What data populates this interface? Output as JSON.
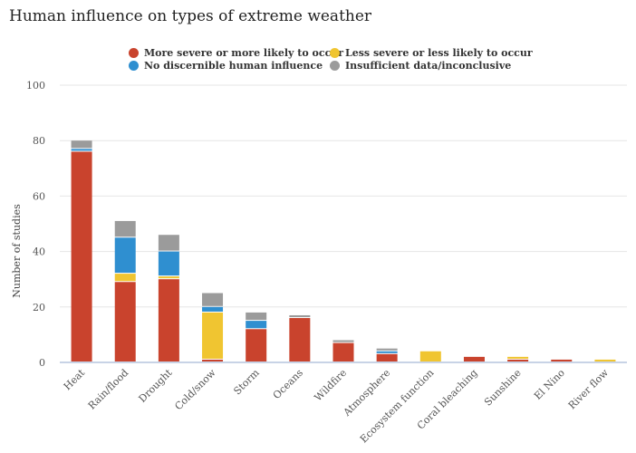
{
  "chart_data": {
    "type": "bar",
    "stacked": true,
    "title": "Human influence on types of extreme weather",
    "xlabel": "",
    "ylabel": "Number of studies",
    "ylim": [
      0,
      100
    ],
    "yticks": [
      0,
      20,
      40,
      60,
      80,
      100
    ],
    "grid": true,
    "legend_position": "top",
    "categories": [
      "Heat",
      "Rain/flood",
      "Drought",
      "Cold/snow",
      "Storm",
      "Oceans",
      "Wildfire",
      "Atmosphere",
      "Ecosystem function",
      "Coral bleaching",
      "Sunshine",
      "El Nino",
      "River flow"
    ],
    "series": [
      {
        "name": "More severe or more likely to occur",
        "color": "#c9432d",
        "values": [
          76,
          29,
          30,
          1,
          12,
          16,
          7,
          3,
          0,
          2,
          1,
          1,
          0
        ]
      },
      {
        "name": "Less severe or less likely to occur",
        "color": "#f0c531",
        "values": [
          0,
          3,
          1,
          17,
          0,
          0,
          0,
          0,
          4,
          0,
          1,
          0,
          1
        ]
      },
      {
        "name": "No discernible human influence",
        "color": "#2f8fd0",
        "values": [
          1,
          13,
          9,
          2,
          3,
          0,
          0,
          1,
          0,
          0,
          0,
          0,
          0
        ]
      },
      {
        "name": "Insufficient data/inconclusive",
        "color": "#9b9b9b",
        "values": [
          3,
          6,
          6,
          5,
          3,
          1,
          1,
          1,
          0,
          0,
          0,
          0,
          0
        ]
      }
    ]
  }
}
